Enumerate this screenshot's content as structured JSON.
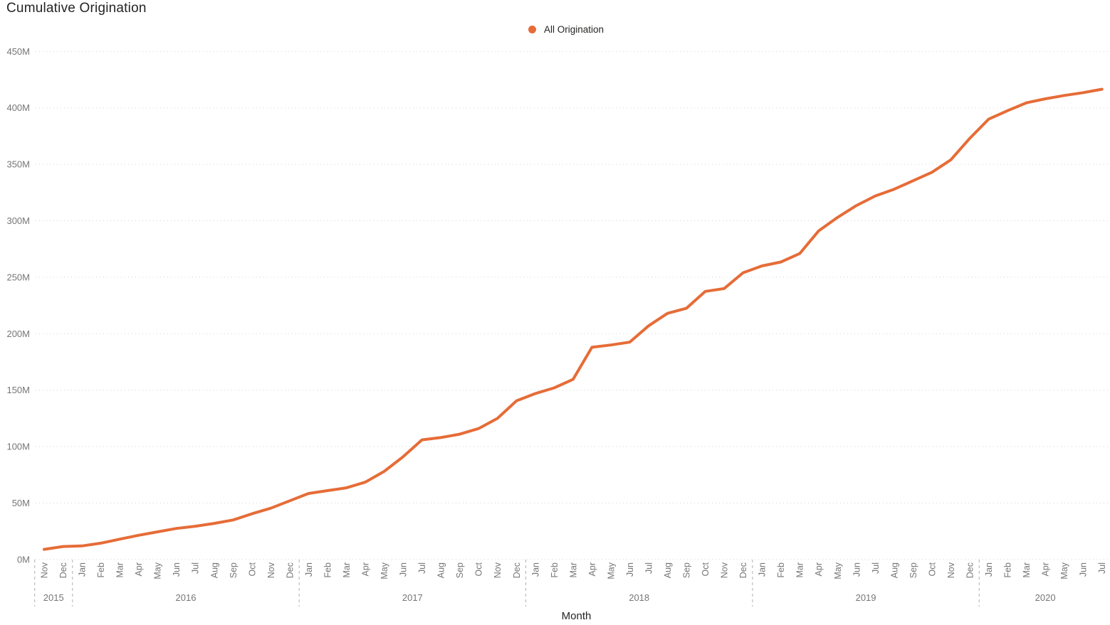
{
  "title": "Cumulative Origination",
  "legend": {
    "position": "top-center",
    "items": [
      {
        "label": "All Origination",
        "color": "#E66C37",
        "marker": "circle-icon"
      }
    ]
  },
  "x_axis": {
    "title": "Month"
  },
  "chart_data": {
    "type": "line",
    "title": "Cumulative Origination",
    "xlabel": "Month",
    "ylabel": "",
    "unit": "millions",
    "ylim_millions": [
      0,
      450
    ],
    "y_tick_labels": [
      "0M",
      "50M",
      "100M",
      "150M",
      "200M",
      "250M",
      "300M",
      "350M",
      "400M",
      "450M"
    ],
    "grid": "dotted-horizontal",
    "legend_position": "top-center",
    "months": [
      "Nov",
      "Dec",
      "Jan",
      "Feb",
      "Mar",
      "Apr",
      "May",
      "Jun",
      "Jul",
      "Aug",
      "Sep",
      "Oct",
      "Nov",
      "Dec",
      "Jan",
      "Feb",
      "Mar",
      "Apr",
      "May",
      "Jun",
      "Jul",
      "Aug",
      "Sep",
      "Oct",
      "Nov",
      "Dec",
      "Jan",
      "Feb",
      "Mar",
      "Apr",
      "May",
      "Jun",
      "Jul",
      "Aug",
      "Sep",
      "Oct",
      "Nov",
      "Dec",
      "Jan",
      "Feb",
      "Mar",
      "Apr",
      "May",
      "Jun",
      "Jul",
      "Aug",
      "Sep",
      "Oct",
      "Nov",
      "Dec",
      "Jan",
      "Feb",
      "Mar",
      "Apr",
      "May",
      "Jun",
      "Jul"
    ],
    "year_groups": [
      {
        "label": "2015",
        "months": 2
      },
      {
        "label": "2016",
        "months": 12
      },
      {
        "label": "2017",
        "months": 12
      },
      {
        "label": "2018",
        "months": 12
      },
      {
        "label": "2019",
        "months": 12
      },
      {
        "label": "2020",
        "months": 7
      }
    ],
    "series": [
      {
        "name": "All Origination",
        "color": "#E66C37",
        "values_millions": [
          9,
          11.5,
          12,
          14.5,
          18,
          21.5,
          24.5,
          27.5,
          29.5,
          32,
          35,
          40.5,
          45.5,
          52,
          58.5,
          61,
          63.5,
          68.5,
          78,
          91,
          106,
          108,
          111,
          116,
          125,
          140.5,
          147,
          152,
          159.5,
          188,
          190,
          192.5,
          207,
          218,
          222.5,
          237.5,
          240,
          254,
          260,
          263.5,
          271,
          291,
          303,
          313.5,
          322,
          328,
          335.5,
          343,
          354,
          373,
          390,
          397.5,
          404.5,
          408,
          411,
          413.5,
          416.5
        ]
      }
    ]
  }
}
